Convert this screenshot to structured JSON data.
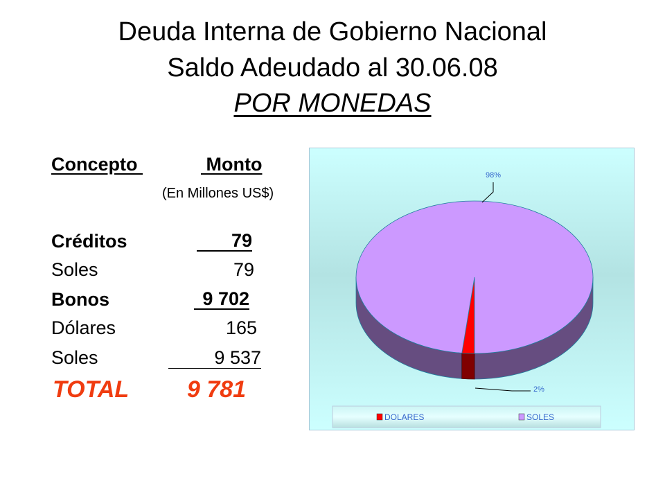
{
  "title": {
    "line1": "Deuda Interna de Gobierno Nacional",
    "line2": "Saldo Adeudado al 30.06.08",
    "line3": "POR MONEDAS"
  },
  "table": {
    "header_concepto": "Concepto ",
    "header_monto": " Monto",
    "unit_note": "(En Millones US$)",
    "rows": [
      {
        "label": "Créditos",
        "value": "79",
        "bold": true
      },
      {
        "label": "Soles",
        "value": "79",
        "bold": false
      },
      {
        "label": "Bonos",
        "value": "9 702",
        "bold": true
      },
      {
        "label": "Dólares",
        "value": "165",
        "bold": false
      },
      {
        "label": "Soles",
        "value": "9 537",
        "bold": false
      }
    ],
    "total_label": "TOTAL",
    "total_value": "9 781",
    "total_color": "#f03c10"
  },
  "chart_data": {
    "type": "pie",
    "style": "3d",
    "categories": [
      "DOLARES",
      "SOLES"
    ],
    "values": [
      165,
      9537
    ],
    "data_labels": [
      "2%",
      "98%"
    ],
    "colors": [
      "#ff0000",
      "#cc99ff"
    ],
    "legend": {
      "placement": "bottom",
      "entries": [
        "DOLARES",
        "SOLES"
      ]
    },
    "background": "#ccffff",
    "label_color": "#3366cc"
  }
}
